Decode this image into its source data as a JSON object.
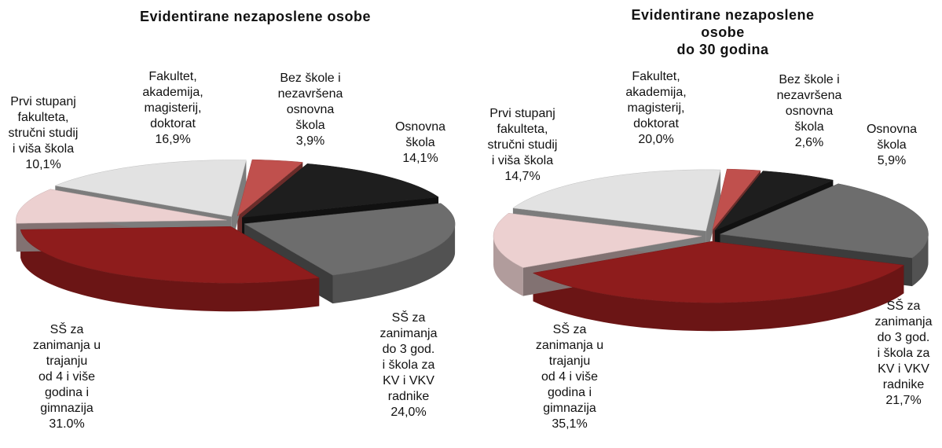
{
  "chart_data": [
    {
      "type": "pie",
      "title": "Evidentirane nezaposlene osobe",
      "categories": [
        "Bez škole i\nnezavršena\nosnovna\nškola",
        "Osnovna\nškola",
        "SŠ za\nzanimanja\ndo 3 god.\ni škola za\nKV i VKV\nradnike",
        "SŠ za\nzanimanja u\ntrajanju\nod 4 i više\ngodina i\ngimnazija",
        "Prvi stupanj\nfakulteta,\nstručni studij\ni viša škola",
        "Fakultet,\nakademija,\nmagisterij,\ndoktorat"
      ],
      "values": [
        3.9,
        14.1,
        24.0,
        31.0,
        10.1,
        16.9
      ],
      "value_labels": [
        "3,9%",
        "14,1%",
        "24,0%",
        "31.0%",
        "10,1%",
        "16,9%"
      ],
      "colors": [
        "#c0504d",
        "#1e1e1e",
        "#6d6d6d",
        "#8e1c1c",
        "#ecd0d0",
        "#e2e2e2"
      ]
    },
    {
      "type": "pie",
      "title": "Evidentirane nezaposlene osobe\ndo 30 godina",
      "categories": [
        "Bez škole i\nnezavršena\nosnovna\nškola",
        "Osnovna\nškola",
        "SŠ za\nzanimanja\ndo 3 god.\ni škola za\nKV i VKV\nradnike",
        "SŠ za\nzanimanja u\ntrajanju\nod 4 i više\ngodina i\ngimnazija",
        "Prvi stupanj\nfakulteta,\nstručni studij\ni viša škola",
        "Fakultet,\nakademija,\nmagisterij,\ndoktorat"
      ],
      "values": [
        2.6,
        5.9,
        21.7,
        35.1,
        14.7,
        20.0
      ],
      "value_labels": [
        "2,6%",
        "5,9%",
        "21,7%",
        "35,1%",
        "14,7%",
        "20,0%"
      ],
      "colors": [
        "#c0504d",
        "#1e1e1e",
        "#6d6d6d",
        "#8e1c1c",
        "#ecd0d0",
        "#e2e2e2"
      ]
    }
  ]
}
